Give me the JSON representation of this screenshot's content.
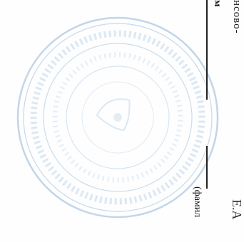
{
  "document": {
    "text_top_right": "нсово-",
    "text_top_mid": "м",
    "text_paren": "(фамил",
    "text_corner": "Е.А"
  },
  "colors": {
    "seal": "#8fb4d8",
    "ink": "#1a1a1a",
    "rule": "#222222"
  }
}
